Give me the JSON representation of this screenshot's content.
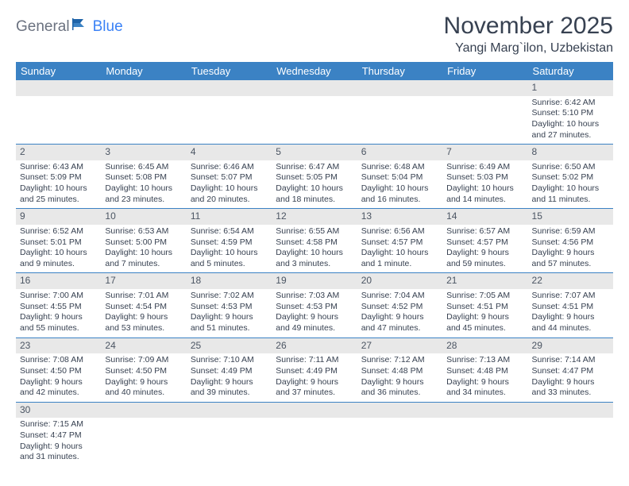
{
  "logo": {
    "part1": "General",
    "part2": "Blue"
  },
  "title": "November 2025",
  "location": "Yangi Marg`ilon, Uzbekistan",
  "colors": {
    "header_bg": "#3b82c4",
    "header_text": "#ffffff",
    "daynum_bg": "#e8e8e8",
    "text": "#374151",
    "logo_gray": "#6b7280",
    "logo_blue": "#3b82f6",
    "border": "#3b82c4",
    "background": "#ffffff"
  },
  "daysOfWeek": [
    "Sunday",
    "Monday",
    "Tuesday",
    "Wednesday",
    "Thursday",
    "Friday",
    "Saturday"
  ],
  "weeks": [
    [
      {
        "blank": true
      },
      {
        "blank": true
      },
      {
        "blank": true
      },
      {
        "blank": true
      },
      {
        "blank": true
      },
      {
        "blank": true
      },
      {
        "n": "1",
        "sunrise": "Sunrise: 6:42 AM",
        "sunset": "Sunset: 5:10 PM",
        "day1": "Daylight: 10 hours",
        "day2": "and 27 minutes."
      }
    ],
    [
      {
        "n": "2",
        "sunrise": "Sunrise: 6:43 AM",
        "sunset": "Sunset: 5:09 PM",
        "day1": "Daylight: 10 hours",
        "day2": "and 25 minutes."
      },
      {
        "n": "3",
        "sunrise": "Sunrise: 6:45 AM",
        "sunset": "Sunset: 5:08 PM",
        "day1": "Daylight: 10 hours",
        "day2": "and 23 minutes."
      },
      {
        "n": "4",
        "sunrise": "Sunrise: 6:46 AM",
        "sunset": "Sunset: 5:07 PM",
        "day1": "Daylight: 10 hours",
        "day2": "and 20 minutes."
      },
      {
        "n": "5",
        "sunrise": "Sunrise: 6:47 AM",
        "sunset": "Sunset: 5:05 PM",
        "day1": "Daylight: 10 hours",
        "day2": "and 18 minutes."
      },
      {
        "n": "6",
        "sunrise": "Sunrise: 6:48 AM",
        "sunset": "Sunset: 5:04 PM",
        "day1": "Daylight: 10 hours",
        "day2": "and 16 minutes."
      },
      {
        "n": "7",
        "sunrise": "Sunrise: 6:49 AM",
        "sunset": "Sunset: 5:03 PM",
        "day1": "Daylight: 10 hours",
        "day2": "and 14 minutes."
      },
      {
        "n": "8",
        "sunrise": "Sunrise: 6:50 AM",
        "sunset": "Sunset: 5:02 PM",
        "day1": "Daylight: 10 hours",
        "day2": "and 11 minutes."
      }
    ],
    [
      {
        "n": "9",
        "sunrise": "Sunrise: 6:52 AM",
        "sunset": "Sunset: 5:01 PM",
        "day1": "Daylight: 10 hours",
        "day2": "and 9 minutes."
      },
      {
        "n": "10",
        "sunrise": "Sunrise: 6:53 AM",
        "sunset": "Sunset: 5:00 PM",
        "day1": "Daylight: 10 hours",
        "day2": "and 7 minutes."
      },
      {
        "n": "11",
        "sunrise": "Sunrise: 6:54 AM",
        "sunset": "Sunset: 4:59 PM",
        "day1": "Daylight: 10 hours",
        "day2": "and 5 minutes."
      },
      {
        "n": "12",
        "sunrise": "Sunrise: 6:55 AM",
        "sunset": "Sunset: 4:58 PM",
        "day1": "Daylight: 10 hours",
        "day2": "and 3 minutes."
      },
      {
        "n": "13",
        "sunrise": "Sunrise: 6:56 AM",
        "sunset": "Sunset: 4:57 PM",
        "day1": "Daylight: 10 hours",
        "day2": "and 1 minute."
      },
      {
        "n": "14",
        "sunrise": "Sunrise: 6:57 AM",
        "sunset": "Sunset: 4:57 PM",
        "day1": "Daylight: 9 hours",
        "day2": "and 59 minutes."
      },
      {
        "n": "15",
        "sunrise": "Sunrise: 6:59 AM",
        "sunset": "Sunset: 4:56 PM",
        "day1": "Daylight: 9 hours",
        "day2": "and 57 minutes."
      }
    ],
    [
      {
        "n": "16",
        "sunrise": "Sunrise: 7:00 AM",
        "sunset": "Sunset: 4:55 PM",
        "day1": "Daylight: 9 hours",
        "day2": "and 55 minutes."
      },
      {
        "n": "17",
        "sunrise": "Sunrise: 7:01 AM",
        "sunset": "Sunset: 4:54 PM",
        "day1": "Daylight: 9 hours",
        "day2": "and 53 minutes."
      },
      {
        "n": "18",
        "sunrise": "Sunrise: 7:02 AM",
        "sunset": "Sunset: 4:53 PM",
        "day1": "Daylight: 9 hours",
        "day2": "and 51 minutes."
      },
      {
        "n": "19",
        "sunrise": "Sunrise: 7:03 AM",
        "sunset": "Sunset: 4:53 PM",
        "day1": "Daylight: 9 hours",
        "day2": "and 49 minutes."
      },
      {
        "n": "20",
        "sunrise": "Sunrise: 7:04 AM",
        "sunset": "Sunset: 4:52 PM",
        "day1": "Daylight: 9 hours",
        "day2": "and 47 minutes."
      },
      {
        "n": "21",
        "sunrise": "Sunrise: 7:05 AM",
        "sunset": "Sunset: 4:51 PM",
        "day1": "Daylight: 9 hours",
        "day2": "and 45 minutes."
      },
      {
        "n": "22",
        "sunrise": "Sunrise: 7:07 AM",
        "sunset": "Sunset: 4:51 PM",
        "day1": "Daylight: 9 hours",
        "day2": "and 44 minutes."
      }
    ],
    [
      {
        "n": "23",
        "sunrise": "Sunrise: 7:08 AM",
        "sunset": "Sunset: 4:50 PM",
        "day1": "Daylight: 9 hours",
        "day2": "and 42 minutes."
      },
      {
        "n": "24",
        "sunrise": "Sunrise: 7:09 AM",
        "sunset": "Sunset: 4:50 PM",
        "day1": "Daylight: 9 hours",
        "day2": "and 40 minutes."
      },
      {
        "n": "25",
        "sunrise": "Sunrise: 7:10 AM",
        "sunset": "Sunset: 4:49 PM",
        "day1": "Daylight: 9 hours",
        "day2": "and 39 minutes."
      },
      {
        "n": "26",
        "sunrise": "Sunrise: 7:11 AM",
        "sunset": "Sunset: 4:49 PM",
        "day1": "Daylight: 9 hours",
        "day2": "and 37 minutes."
      },
      {
        "n": "27",
        "sunrise": "Sunrise: 7:12 AM",
        "sunset": "Sunset: 4:48 PM",
        "day1": "Daylight: 9 hours",
        "day2": "and 36 minutes."
      },
      {
        "n": "28",
        "sunrise": "Sunrise: 7:13 AM",
        "sunset": "Sunset: 4:48 PM",
        "day1": "Daylight: 9 hours",
        "day2": "and 34 minutes."
      },
      {
        "n": "29",
        "sunrise": "Sunrise: 7:14 AM",
        "sunset": "Sunset: 4:47 PM",
        "day1": "Daylight: 9 hours",
        "day2": "and 33 minutes."
      }
    ],
    [
      {
        "n": "30",
        "sunrise": "Sunrise: 7:15 AM",
        "sunset": "Sunset: 4:47 PM",
        "day1": "Daylight: 9 hours",
        "day2": "and 31 minutes."
      },
      {
        "blank": true
      },
      {
        "blank": true
      },
      {
        "blank": true
      },
      {
        "blank": true
      },
      {
        "blank": true
      },
      {
        "blank": true
      }
    ]
  ]
}
